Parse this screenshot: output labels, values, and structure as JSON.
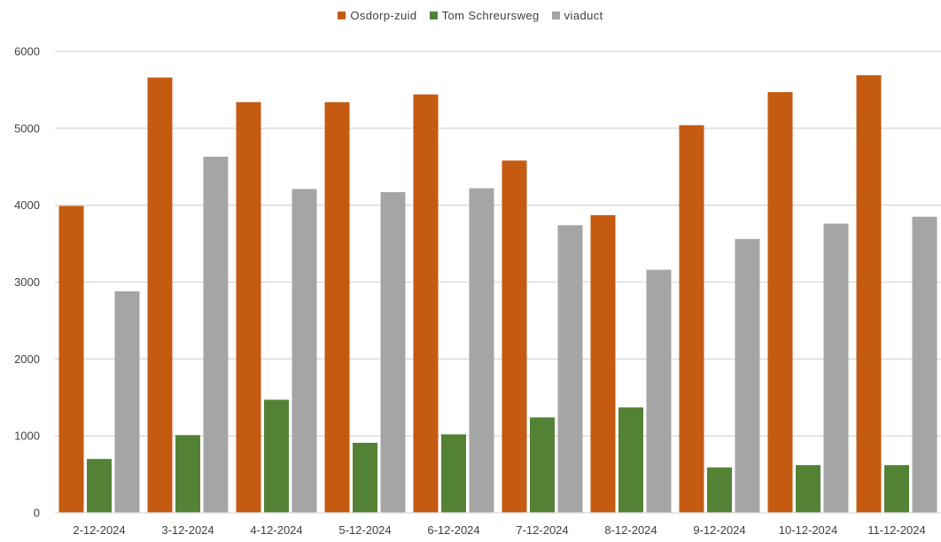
{
  "chart_data": {
    "type": "bar",
    "title": "",
    "xlabel": "",
    "ylabel": "",
    "categories": [
      "2-12-2024",
      "3-12-2024",
      "4-12-2024",
      "5-12-2024",
      "6-12-2024",
      "7-12-2024",
      "8-12-2024",
      "9-12-2024",
      "10-12-2024",
      "11-12-2024"
    ],
    "series": [
      {
        "name": "Osdorp-zuid",
        "color": "#C55A11",
        "values": [
          3990,
          5660,
          5340,
          5340,
          5440,
          4580,
          3870,
          5040,
          5470,
          5690
        ]
      },
      {
        "name": "Tom Schreursweg",
        "color": "#548235",
        "values": [
          700,
          1010,
          1470,
          910,
          1020,
          1240,
          1370,
          590,
          620,
          620
        ]
      },
      {
        "name": "viaduct",
        "color": "#A5A5A5",
        "values": [
          2880,
          4630,
          4210,
          4170,
          4220,
          3740,
          3160,
          3560,
          3760,
          3850
        ]
      }
    ],
    "ylim": [
      0,
      6000
    ],
    "yticks": [
      0,
      1000,
      2000,
      3000,
      4000,
      5000,
      6000
    ],
    "grid": true,
    "legend_position": "top-center"
  }
}
